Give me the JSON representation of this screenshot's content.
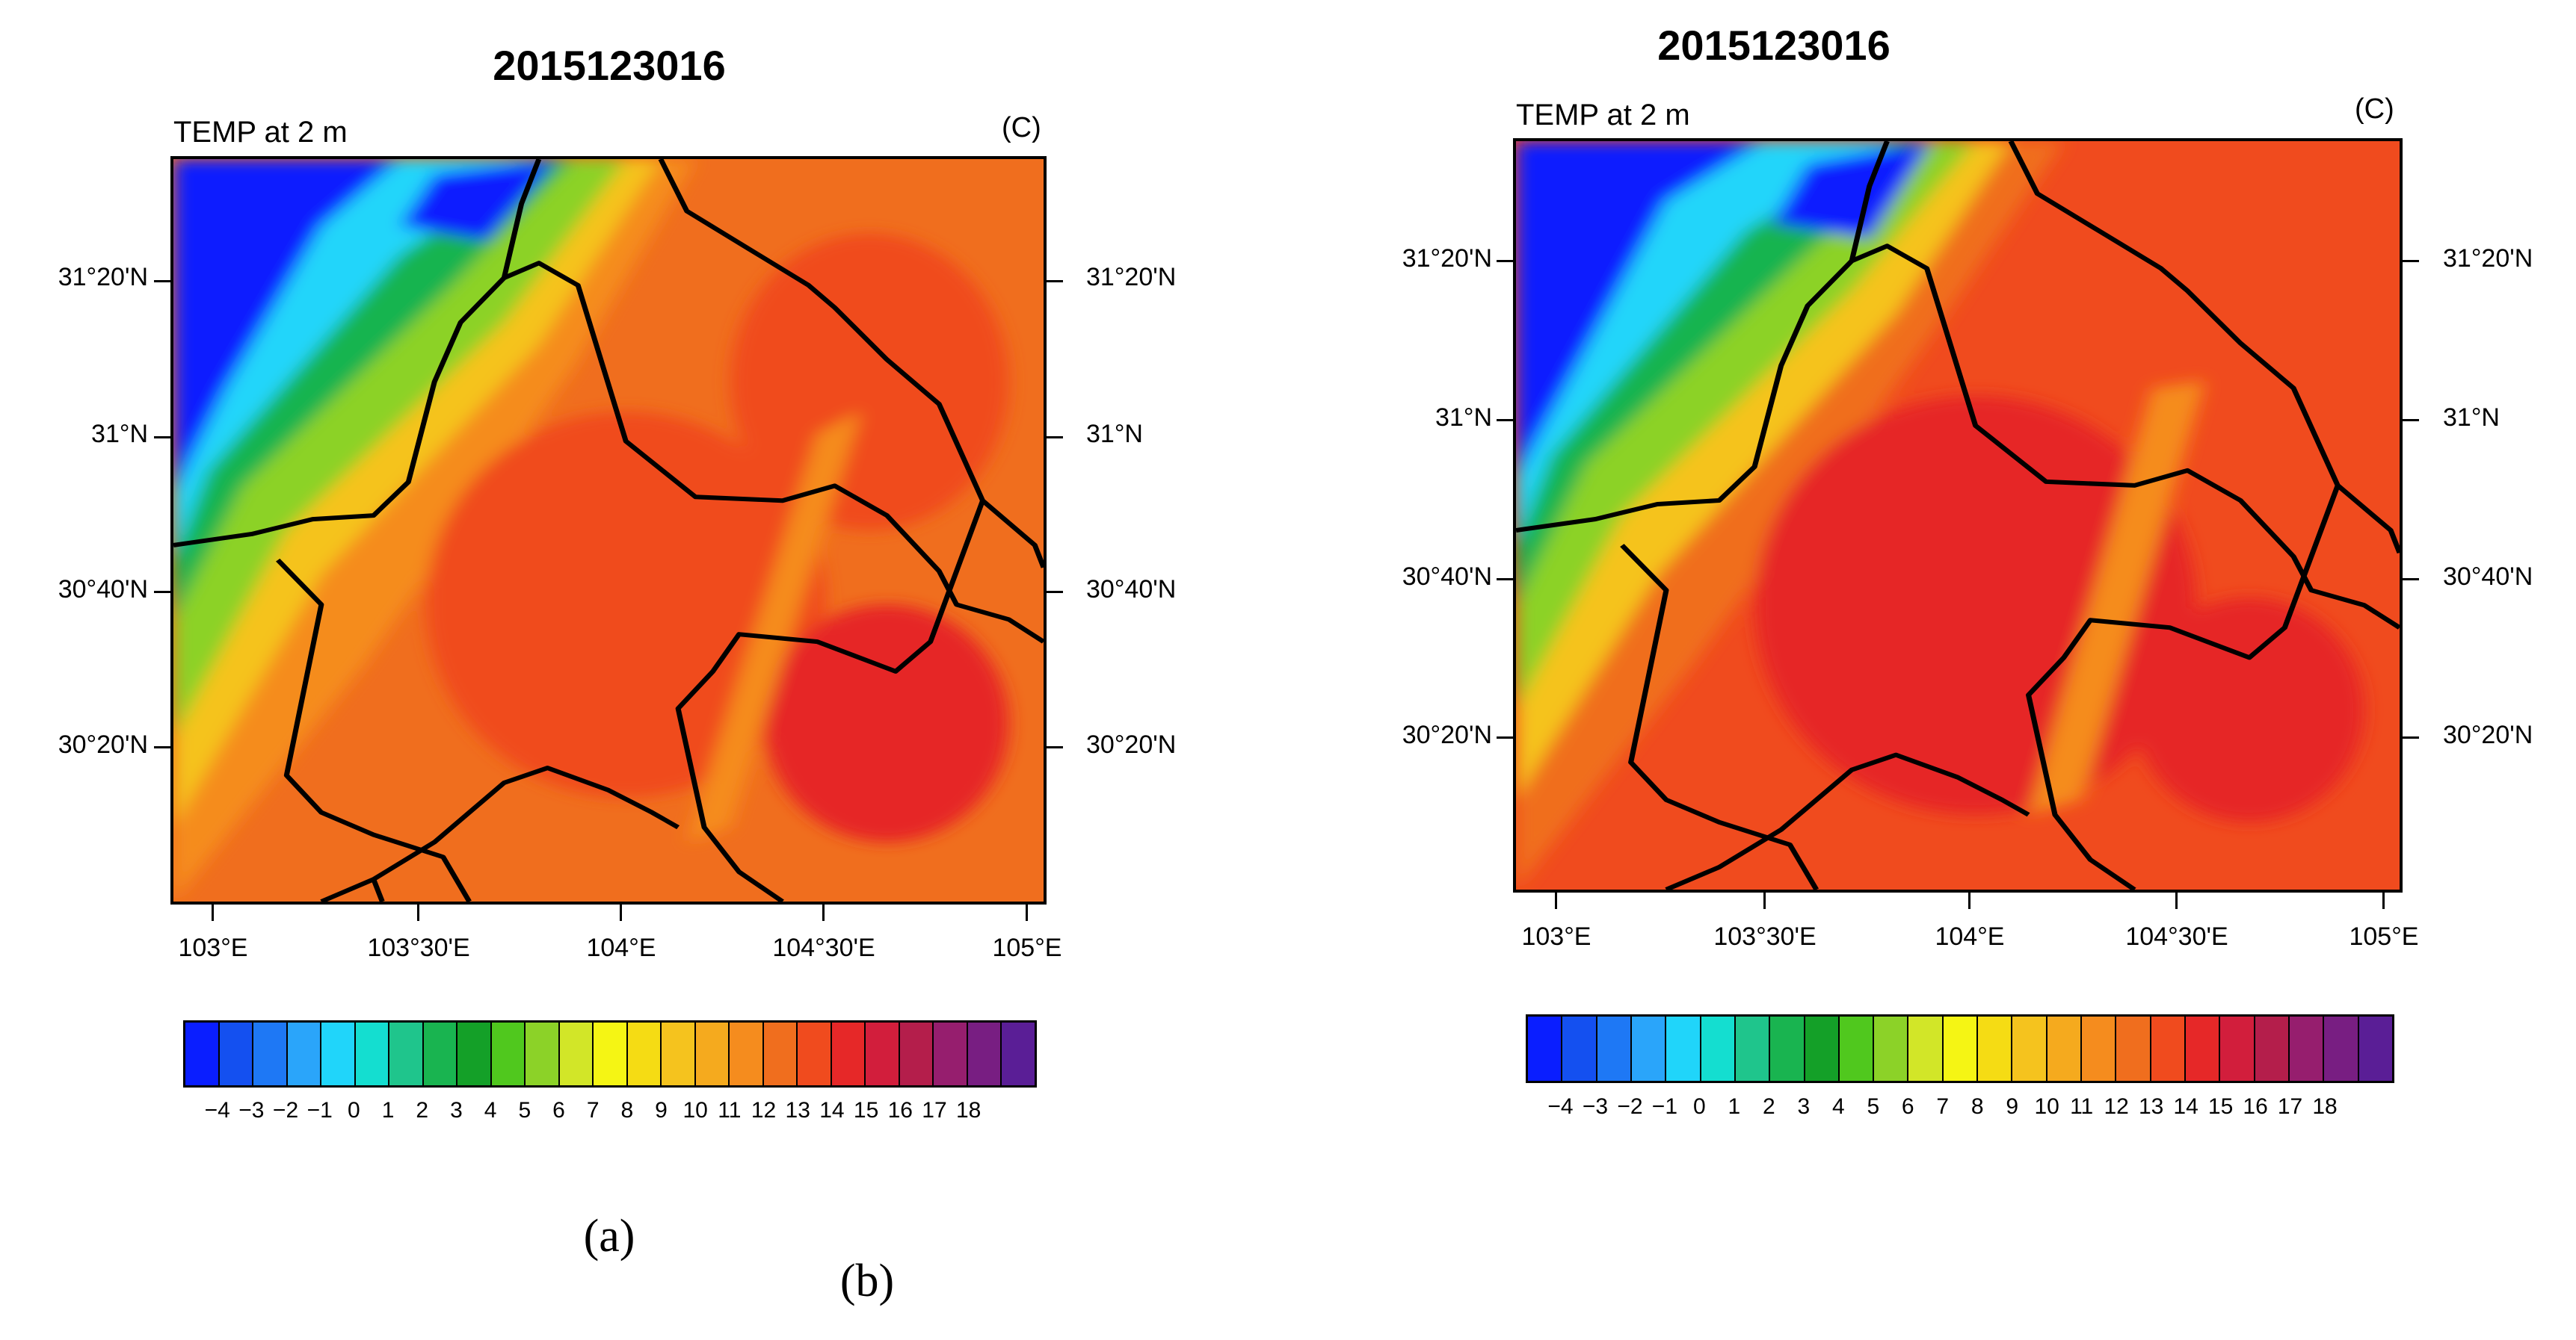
{
  "panels": [
    {
      "id": "a",
      "title": "2015123016",
      "field_label": "TEMP at 2 m",
      "unit_label": "(C)",
      "lat_ticks": [
        "31°20'N",
        "31°N",
        "30°40'N",
        "30°20'N"
      ],
      "lon_ticks": [
        "103°E",
        "103°30'E",
        "104°E",
        "104°30'E",
        "105°E"
      ],
      "caption": "(a)"
    },
    {
      "id": "b",
      "title": "2015123016",
      "field_label": "TEMP at 2 m",
      "unit_label": "(C)",
      "lat_ticks": [
        "31°20'N",
        "31°N",
        "30°40'N",
        "30°20'N"
      ],
      "lon_ticks": [
        "103°E",
        "103°30'E",
        "104°E",
        "104°30'E",
        "105°E"
      ],
      "caption": "(b)"
    }
  ],
  "colorbar": {
    "labels": [
      "−4",
      "−3",
      "−2",
      "−1",
      "0",
      "1",
      "2",
      "3",
      "4",
      "5",
      "6",
      "7",
      "8",
      "9",
      "10",
      "11",
      "12",
      "13",
      "14",
      "15",
      "16",
      "17",
      "18"
    ],
    "colors": [
      "#0a1eff",
      "#1450f0",
      "#1e78f5",
      "#2aa5fa",
      "#20d5fa",
      "#14ded0",
      "#1fc58c",
      "#19b450",
      "#14a028",
      "#50c81e",
      "#8cd228",
      "#d2e628",
      "#f5f514",
      "#f5dc14",
      "#f5c31e",
      "#f5aa1e",
      "#f58c1e",
      "#f06e1e",
      "#f04b1e",
      "#e62828",
      "#d21e3c",
      "#b41e4b",
      "#961e6e",
      "#781e82",
      "#5a1e96"
    ]
  }
}
